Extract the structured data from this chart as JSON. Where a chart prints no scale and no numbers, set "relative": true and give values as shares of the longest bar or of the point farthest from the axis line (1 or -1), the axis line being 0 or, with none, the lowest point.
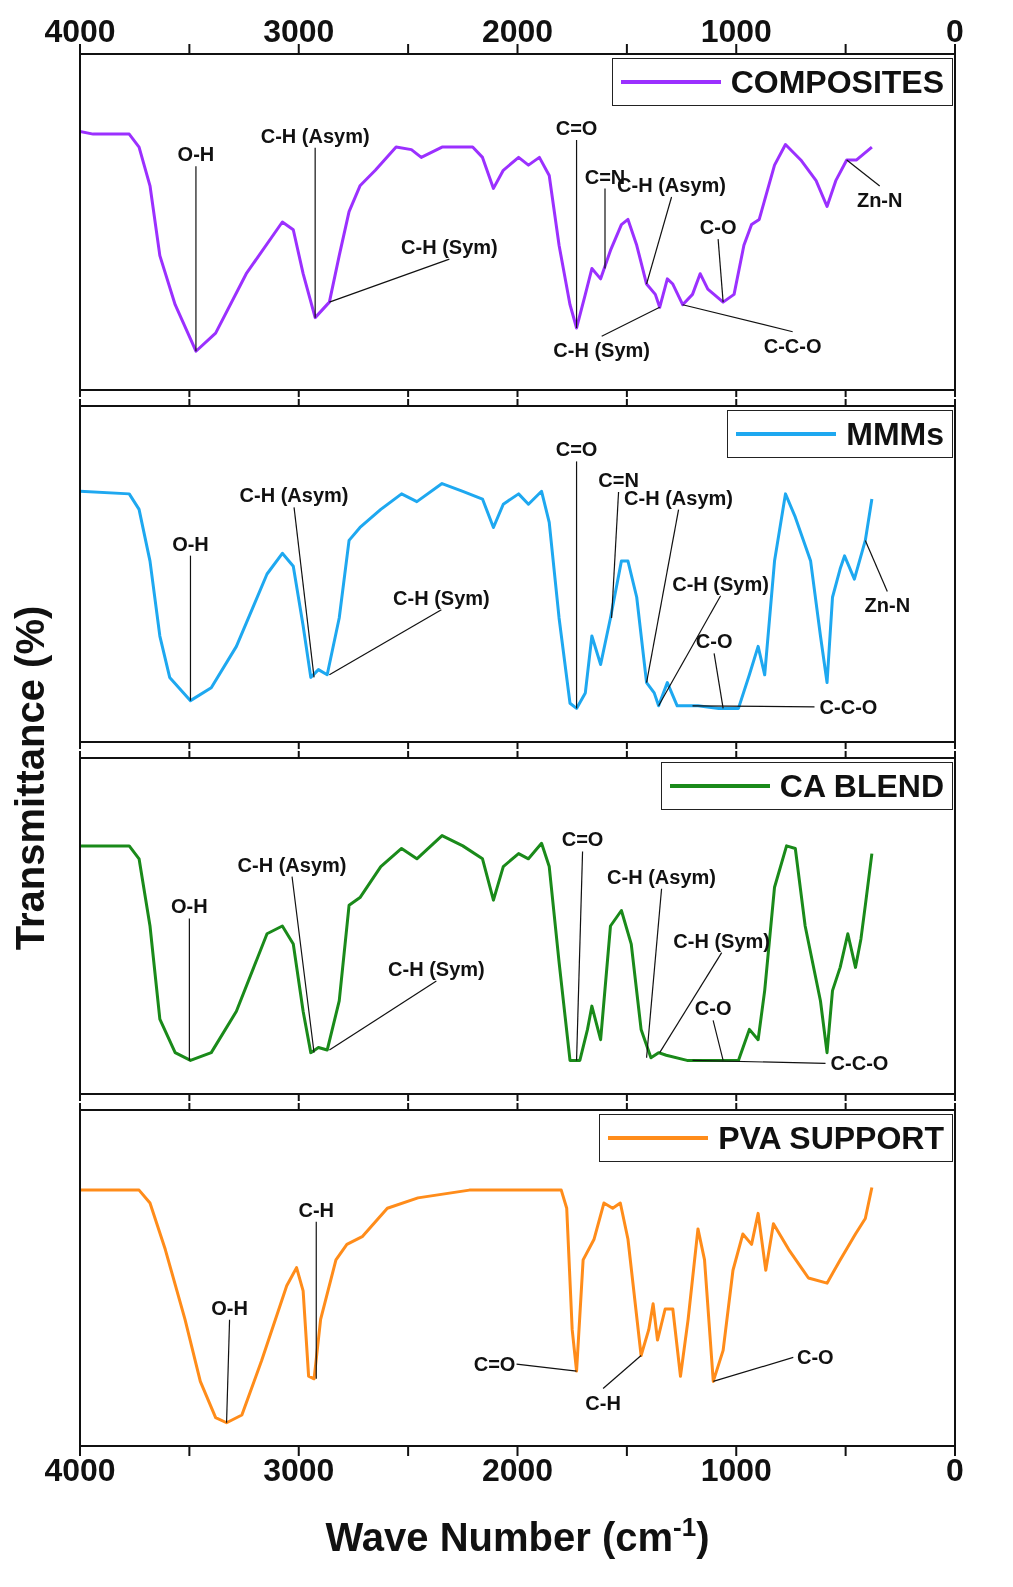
{
  "chart_data": [
    {
      "type": "line",
      "relative": true,
      "ylabel": "Transmittance (%)",
      "xlim": [
        4000,
        0
      ],
      "x2lim": [
        4000,
        0
      ],
      "x2ticks": [
        4000,
        {
          "value": 3500,
          "label": null
        },
        3000,
        {
          "value": 2500,
          "label": null
        },
        2000,
        {
          "value": 1500,
          "label": null
        },
        1000,
        {
          "value": 500,
          "label": null
        },
        0
      ],
      "tick_labels": "x",
      "legend": "top right",
      "marker": "none",
      "line_style": "solid",
      "series": [
        {
          "name": "COMPOSITES",
          "color": "#9b30ff",
          "x": [
            4000,
            3940,
            3775,
            3730,
            3680,
            3635,
            3565,
            3470,
            3380,
            3240,
            3075,
            3025,
            2980,
            2925,
            2860,
            2815,
            2770,
            2720,
            2650,
            2555,
            2485,
            2440,
            2345,
            2205,
            2160,
            2110,
            2065,
            1995,
            1950,
            1900,
            1855,
            1810,
            1760,
            1730,
            1690,
            1660,
            1620,
            1575,
            1525,
            1495,
            1455,
            1410,
            1370,
            1350,
            1315,
            1290,
            1245,
            1200,
            1165,
            1130,
            1060,
            1010,
            965,
            930,
            895,
            825,
            775,
            705,
            635,
            585,
            545,
            495,
            450,
            380
          ],
          "values": [
            1.0,
            0.99,
            0.99,
            0.94,
            0.79,
            0.52,
            0.33,
            0.15,
            0.22,
            0.45,
            0.65,
            0.62,
            0.45,
            0.28,
            0.34,
            0.52,
            0.69,
            0.79,
            0.85,
            0.94,
            0.93,
            0.9,
            0.94,
            0.94,
            0.9,
            0.78,
            0.85,
            0.9,
            0.87,
            0.9,
            0.83,
            0.56,
            0.33,
            0.24,
            0.37,
            0.47,
            0.43,
            0.54,
            0.64,
            0.66,
            0.56,
            0.41,
            0.37,
            0.32,
            0.43,
            0.41,
            0.33,
            0.37,
            0.45,
            0.39,
            0.34,
            0.37,
            0.56,
            0.64,
            0.66,
            0.87,
            0.95,
            0.89,
            0.81,
            0.71,
            0.81,
            0.89,
            0.89,
            0.94
          ]
        }
      ],
      "annotations": [
        {
          "text": "O-H",
          "x": 3470,
          "y": 0.15
        },
        {
          "text": "C-H (Asym)",
          "x": 2925,
          "y": 0.28
        },
        {
          "text": "C-H (Sym)",
          "x": 2860,
          "y": 0.34
        },
        {
          "text": "C=O",
          "x": 1730,
          "y": 0.24
        },
        {
          "text": "C=N",
          "x": 1600,
          "y": 0.47
        },
        {
          "text": "C-H (Asym)",
          "x": 1410,
          "y": 0.41
        },
        {
          "text": "C-H (Sym)",
          "x": 1350,
          "y": 0.32
        },
        {
          "text": "C-C-O",
          "x": 1245,
          "y": 0.33
        },
        {
          "text": "C-O",
          "x": 1060,
          "y": 0.34
        },
        {
          "text": "Zn-N",
          "x": 495,
          "y": 0.89
        }
      ]
    },
    {
      "type": "line",
      "relative": true,
      "xlim": [
        4000,
        0
      ],
      "xticks": [
        4000,
        {
          "value": 3500,
          "label": null
        },
        3000,
        {
          "value": 2500,
          "label": null
        },
        2000,
        {
          "value": 1500,
          "label": null
        },
        1000,
        {
          "value": 500,
          "label": null
        },
        0
      ],
      "tick_labels": false,
      "legend": "top right",
      "marker": "none",
      "line_style": "solid",
      "series": [
        {
          "name": "MMMs",
          "color": "#1ea8f0",
          "x": [
            4000,
            3775,
            3730,
            3680,
            3635,
            3590,
            3495,
            3400,
            3285,
            3145,
            3075,
            3025,
            2980,
            2945,
            2910,
            2870,
            2815,
            2770,
            2720,
            2625,
            2530,
            2460,
            2345,
            2250,
            2160,
            2110,
            2065,
            1995,
            1950,
            1890,
            1855,
            1810,
            1760,
            1730,
            1690,
            1660,
            1620,
            1575,
            1525,
            1495,
            1455,
            1410,
            1375,
            1355,
            1315,
            1270,
            1175,
            1080,
            990,
            940,
            900,
            870,
            825,
            775,
            730,
            660,
            615,
            585,
            560,
            525,
            505,
            460,
            410,
            380
          ],
          "values": [
            0.97,
            0.96,
            0.9,
            0.7,
            0.41,
            0.25,
            0.16,
            0.21,
            0.37,
            0.65,
            0.73,
            0.68,
            0.45,
            0.25,
            0.28,
            0.26,
            0.48,
            0.78,
            0.83,
            0.9,
            0.96,
            0.93,
            1.0,
            0.97,
            0.94,
            0.83,
            0.92,
            0.96,
            0.92,
            0.97,
            0.85,
            0.48,
            0.15,
            0.13,
            0.19,
            0.41,
            0.3,
            0.48,
            0.7,
            0.7,
            0.56,
            0.23,
            0.19,
            0.14,
            0.23,
            0.14,
            0.14,
            0.13,
            0.13,
            0.26,
            0.37,
            0.26,
            0.7,
            0.96,
            0.87,
            0.7,
            0.41,
            0.23,
            0.56,
            0.67,
            0.72,
            0.63,
            0.78,
            0.94
          ]
        }
      ],
      "annotations": [
        {
          "text": "O-H",
          "x": 3495,
          "y": 0.16
        },
        {
          "text": "C-H (Asym)",
          "x": 2930,
          "y": 0.25
        },
        {
          "text": "C-H (Sym)",
          "x": 2860,
          "y": 0.26
        },
        {
          "text": "C=O",
          "x": 1730,
          "y": 0.13
        },
        {
          "text": "C=N",
          "x": 1570,
          "y": 0.48
        },
        {
          "text": "C-H (Asym)",
          "x": 1410,
          "y": 0.23
        },
        {
          "text": "C-H (Sym)",
          "x": 1355,
          "y": 0.14
        },
        {
          "text": "C-O",
          "x": 1060,
          "y": 0.13
        },
        {
          "text": "C-C-O",
          "x": 1200,
          "y": 0.14
        },
        {
          "text": "Zn-N",
          "x": 410,
          "y": 0.78
        }
      ]
    },
    {
      "type": "line",
      "relative": true,
      "xlim": [
        4000,
        0
      ],
      "xticks": [
        4000,
        {
          "value": 3500,
          "label": null
        },
        3000,
        {
          "value": 2500,
          "label": null
        },
        2000,
        {
          "value": 1500,
          "label": null
        },
        1000,
        {
          "value": 500,
          "label": null
        },
        0
      ],
      "tick_labels": false,
      "legend": "top right",
      "marker": "none",
      "line_style": "solid",
      "series": [
        {
          "name": "CA BLEND",
          "color": "#1a8a1a",
          "x": [
            4000,
            3775,
            3730,
            3680,
            3635,
            3565,
            3495,
            3400,
            3285,
            3145,
            3075,
            3025,
            2980,
            2945,
            2910,
            2870,
            2815,
            2770,
            2720,
            2625,
            2530,
            2460,
            2345,
            2250,
            2160,
            2110,
            2065,
            1995,
            1950,
            1890,
            1855,
            1810,
            1760,
            1715,
            1680,
            1660,
            1620,
            1575,
            1525,
            1480,
            1435,
            1390,
            1355,
            1320,
            1225,
            990,
            940,
            900,
            870,
            825,
            770,
            730,
            685,
            615,
            585,
            560,
            525,
            490,
            455,
            430,
            410,
            380
          ],
          "values": [
            0.96,
            0.96,
            0.91,
            0.65,
            0.29,
            0.16,
            0.13,
            0.16,
            0.32,
            0.62,
            0.65,
            0.58,
            0.32,
            0.16,
            0.18,
            0.17,
            0.36,
            0.73,
            0.76,
            0.88,
            0.95,
            0.91,
            1.0,
            0.96,
            0.91,
            0.75,
            0.88,
            0.93,
            0.91,
            0.97,
            0.88,
            0.51,
            0.13,
            0.13,
            0.25,
            0.34,
            0.21,
            0.65,
            0.71,
            0.58,
            0.25,
            0.14,
            0.16,
            0.15,
            0.13,
            0.13,
            0.25,
            0.21,
            0.4,
            0.8,
            0.96,
            0.95,
            0.65,
            0.36,
            0.16,
            0.4,
            0.49,
            0.62,
            0.49,
            0.6,
            0.73,
            0.93
          ]
        }
      ],
      "annotations": [
        {
          "text": "O-H",
          "x": 3500,
          "y": 0.13
        },
        {
          "text": "C-H (Asym)",
          "x": 2930,
          "y": 0.16
        },
        {
          "text": "C-H (Sym)",
          "x": 2860,
          "y": 0.17
        },
        {
          "text": "C=O",
          "x": 1730,
          "y": 0.13
        },
        {
          "text": "C-H (Asym)",
          "x": 1410,
          "y": 0.14
        },
        {
          "text": "C-H (Sym)",
          "x": 1350,
          "y": 0.16
        },
        {
          "text": "C-O",
          "x": 1060,
          "y": 0.13
        },
        {
          "text": "C-C-O",
          "x": 1200,
          "y": 0.13
        }
      ]
    },
    {
      "type": "line",
      "relative": true,
      "xlabel": "Wave Number (cm$^{-1}$)",
      "xlim": [
        4000,
        0
      ],
      "xticks": [
        4000,
        {
          "value": 3500,
          "label": null
        },
        3000,
        {
          "value": 2500,
          "label": null
        },
        2000,
        {
          "value": 1500,
          "label": null
        },
        1000,
        {
          "value": 500,
          "label": null
        },
        0
      ],
      "tick_labels": "x",
      "legend": "top right",
      "marker": "none",
      "line_style": "solid",
      "series": [
        {
          "name": "PVA SUPPORT",
          "color": "#ff8c1a",
          "x": [
            4000,
            3730,
            3680,
            3610,
            3520,
            3450,
            3380,
            3330,
            3260,
            3170,
            3055,
            3010,
            2980,
            2955,
            2930,
            2900,
            2830,
            2780,
            2710,
            2595,
            2455,
            2220,
            1940,
            1800,
            1775,
            1750,
            1730,
            1700,
            1650,
            1605,
            1565,
            1530,
            1495,
            1435,
            1400,
            1380,
            1360,
            1325,
            1290,
            1255,
            1220,
            1175,
            1145,
            1105,
            1060,
            1015,
            970,
            930,
            900,
            865,
            830,
            760,
            670,
            585,
            525,
            455,
            410,
            380
          ],
          "values": [
            0.99,
            0.99,
            0.94,
            0.76,
            0.49,
            0.25,
            0.11,
            0.09,
            0.12,
            0.33,
            0.62,
            0.69,
            0.6,
            0.27,
            0.26,
            0.49,
            0.72,
            0.78,
            0.81,
            0.92,
            0.96,
            0.99,
            0.99,
            0.99,
            0.92,
            0.45,
            0.29,
            0.72,
            0.8,
            0.94,
            0.92,
            0.94,
            0.8,
            0.35,
            0.45,
            0.55,
            0.41,
            0.53,
            0.53,
            0.27,
            0.49,
            0.84,
            0.72,
            0.25,
            0.37,
            0.68,
            0.82,
            0.78,
            0.9,
            0.68,
            0.86,
            0.76,
            0.65,
            0.63,
            0.72,
            0.82,
            0.88,
            1.0
          ]
        }
      ],
      "annotations": [
        {
          "text": "O-H",
          "x": 3330,
          "y": 0.09
        },
        {
          "text": "C-H",
          "x": 2920,
          "y": 0.26
        },
        {
          "text": "C=O",
          "x": 1730,
          "y": 0.29
        },
        {
          "text": "C-H",
          "x": 1435,
          "y": 0.35
        },
        {
          "text": "C-O",
          "x": 1105,
          "y": 0.25
        }
      ]
    }
  ]
}
